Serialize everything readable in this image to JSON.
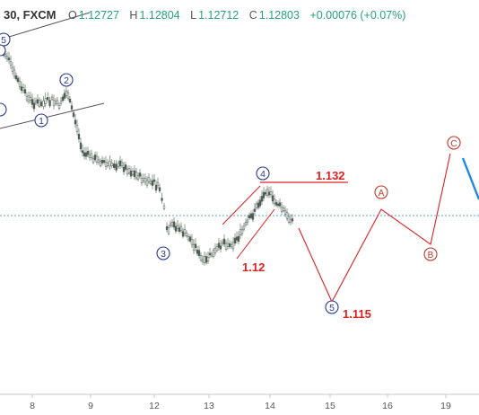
{
  "header": {
    "symbol": "30, FXCM",
    "open_label": "O",
    "open": "1.12727",
    "high_label": "H",
    "high": "1.12804",
    "low_label": "L",
    "low": "1.12712",
    "close_label": "C",
    "close": "1.12803",
    "change": "+0.00076 (+0.07%)"
  },
  "x_axis": {
    "ticks": [
      {
        "label": "8"
      },
      {
        "label": "9"
      },
      {
        "label": "12"
      },
      {
        "label": "13"
      },
      {
        "label": "14"
      },
      {
        "label": "15"
      },
      {
        "label": "16"
      },
      {
        "label": "19"
      }
    ]
  },
  "wave_labels": {
    "blue": [
      "5",
      "2",
      "1",
      "3",
      "4",
      "5"
    ],
    "red": [
      "A",
      "B",
      "C"
    ]
  },
  "levels": {
    "l1": "1.132",
    "l2": "1.12",
    "l3": "1.115"
  },
  "colors": {
    "up": "#27a376",
    "candle": "#4b5a52",
    "wave_blue": "#2a3a8c",
    "wave_red": "#e02020",
    "trend": "#555555",
    "price_line": "#1e88e5"
  }
}
